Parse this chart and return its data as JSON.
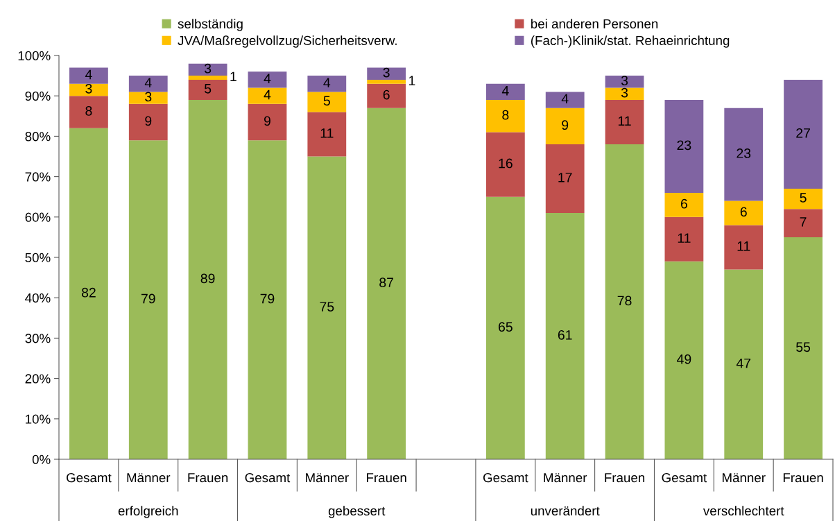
{
  "chart_data": {
    "type": "bar",
    "stacked": true,
    "categories": [
      "Gesamt",
      "Männer",
      "Frauen",
      "Gesamt",
      "Männer",
      "Frauen",
      null,
      "Gesamt",
      "Männer",
      "Frauen",
      "Gesamt",
      "Männer",
      "Frauen"
    ],
    "series": [
      {
        "name": "selbständig",
        "color": "#9bbb59",
        "values": [
          82,
          79,
          89,
          79,
          75,
          87,
          null,
          65,
          61,
          78,
          49,
          47,
          55
        ]
      },
      {
        "name": "bei anderen Personen",
        "color": "#c0504d",
        "values": [
          8,
          9,
          5,
          9,
          11,
          6,
          null,
          16,
          17,
          11,
          11,
          11,
          7
        ]
      },
      {
        "name": "JVA/Maßregelvollzug/Sicherheitsverw.",
        "color": "#ffc000",
        "values": [
          3,
          3,
          1,
          4,
          5,
          1,
          null,
          8,
          9,
          3,
          6,
          6,
          5
        ]
      },
      {
        "name": "(Fach-)Klinik/stat. Rehaeinrichtung",
        "color": "#8064a2",
        "values": [
          4,
          4,
          3,
          4,
          4,
          3,
          null,
          4,
          4,
          3,
          23,
          23,
          27
        ]
      }
    ],
    "ylim": [
      0,
      100
    ],
    "yticks": [
      {
        "value": 0,
        "label": "0%"
      },
      {
        "value": 10,
        "label": "10%"
      },
      {
        "value": 20,
        "label": "20%"
      },
      {
        "value": 30,
        "label": "30%"
      },
      {
        "value": 40,
        "label": "40%"
      },
      {
        "value": 50,
        "label": "50%"
      },
      {
        "value": 60,
        "label": "60%"
      },
      {
        "value": 70,
        "label": "70%"
      },
      {
        "value": 80,
        "label": "80%"
      },
      {
        "value": 90,
        "label": "90%"
      },
      {
        "value": 100,
        "label": "100%"
      }
    ],
    "data_labels": true,
    "legend": "top",
    "grid": false,
    "annotations": [
      "erfolgreich",
      "gebessert",
      "unverändert",
      "verschlechtert"
    ]
  }
}
